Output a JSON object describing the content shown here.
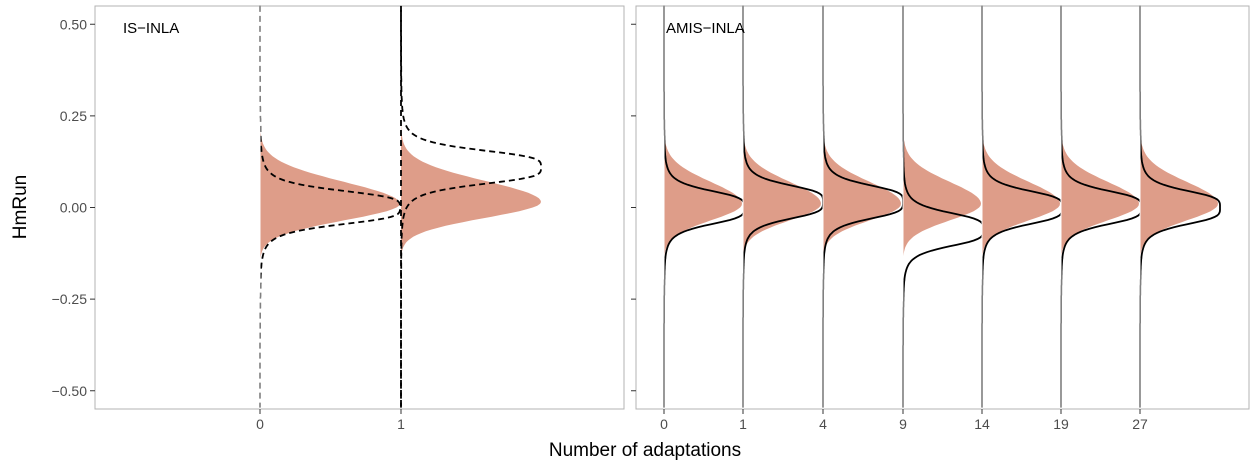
{
  "chart_data": {
    "type": "area",
    "ylabel": "HmRun",
    "xlabel": "Number of adaptations",
    "ylim": [
      -0.55,
      0.55
    ],
    "y_ticks": [
      "0.50",
      "0.25",
      "0.00",
      "-0.25",
      "-0.50"
    ],
    "y_tick_values": [
      0.5,
      0.25,
      0.0,
      -0.25,
      -0.5
    ],
    "grid": false,
    "colors": {
      "density_fill": "#DE9D89",
      "curve": "#000000",
      "frame": "#b3b3b3"
    },
    "panels": [
      {
        "label": "IS−INLA",
        "adaptations": [
          "0",
          "1"
        ],
        "curve_style": "dashed",
        "densities": [
          {
            "adaptation": "0",
            "mean": 0.01,
            "sd": 0.052,
            "skew": -0.14,
            "curve_center": 0.0
          },
          {
            "adaptation": "1",
            "mean": 0.015,
            "sd": 0.05,
            "skew": -0.14,
            "curve_center": 0.11
          }
        ]
      },
      {
        "label": "AMIS−INLA",
        "adaptations": [
          "0",
          "1",
          "4",
          "9",
          "14",
          "19",
          "27"
        ],
        "curve_style": "solid",
        "densities": [
          {
            "adaptation": "0",
            "mean": 0.01,
            "sd": 0.052,
            "skew": -0.14,
            "curve_center": 0.0
          },
          {
            "adaptation": "1",
            "mean": 0.01,
            "sd": 0.052,
            "skew": -0.14,
            "curve_center": 0.015
          },
          {
            "adaptation": "4",
            "mean": 0.01,
            "sd": 0.052,
            "skew": -0.14,
            "curve_center": 0.015
          },
          {
            "adaptation": "9",
            "mean": 0.01,
            "sd": 0.052,
            "skew": -0.14,
            "curve_center": -0.06
          },
          {
            "adaptation": "14",
            "mean": 0.01,
            "sd": 0.052,
            "skew": -0.14,
            "curve_center": 0.0
          },
          {
            "adaptation": "19",
            "mean": 0.01,
            "sd": 0.052,
            "skew": -0.14,
            "curve_center": 0.0
          },
          {
            "adaptation": "27",
            "mean": 0.01,
            "sd": 0.052,
            "skew": -0.14,
            "curve_center": 0.0
          }
        ]
      }
    ]
  }
}
